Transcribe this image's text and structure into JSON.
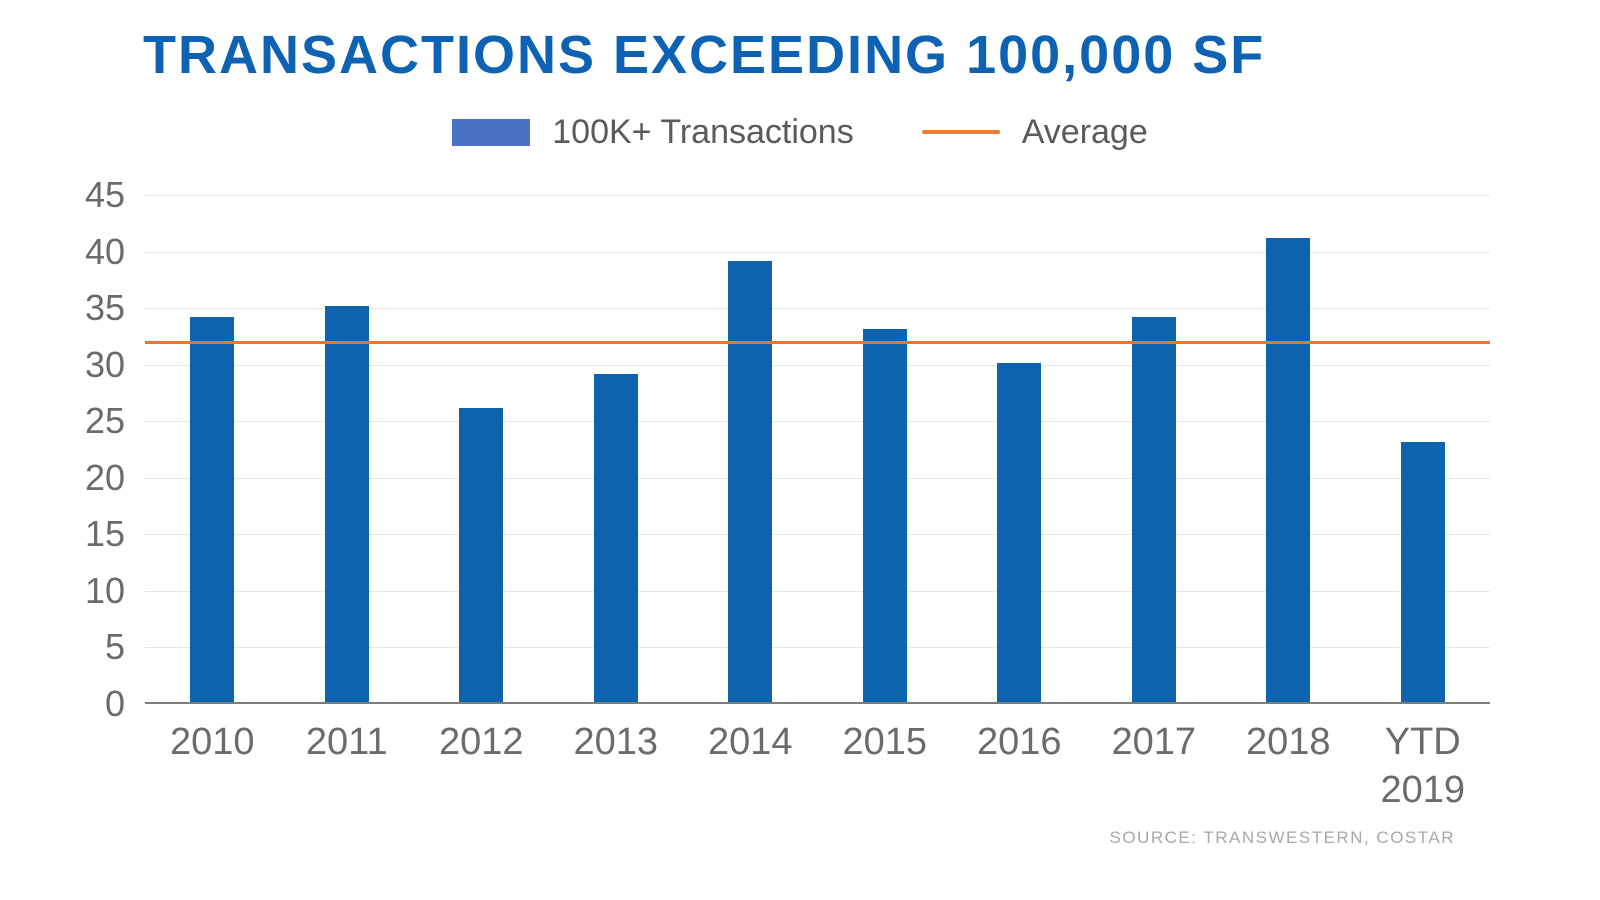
{
  "header": {
    "title": "TRANSACTIONS EXCEEDING 100,000 SF"
  },
  "legend": {
    "bars_label": "100K+ Transactions",
    "average_label": "Average"
  },
  "footer": {
    "source": "SOURCE: TRANSWESTERN, COSTAR"
  },
  "colors": {
    "title": "#0d62b4",
    "bar": "#0d63ad",
    "legend_bar_swatch": "#4a72c4",
    "average_line": "#e8772f",
    "legend_line_swatch": "#ed7d31",
    "axis_text": "#6b6b6b",
    "legend_text": "#5a5a5a",
    "gridline": "#e7e7e7",
    "baseline": "#7d7d7d",
    "source_text": "#a8a8a8"
  },
  "chart_data": {
    "type": "bar",
    "title": "TRANSACTIONS EXCEEDING 100,000 SF",
    "categories": [
      "2010",
      "2011",
      "2012",
      "2013",
      "2014",
      "2015",
      "2016",
      "2017",
      "2018",
      "YTD 2019"
    ],
    "xtick_lines": [
      [
        "2010"
      ],
      [
        "2011"
      ],
      [
        "2012"
      ],
      [
        "2013"
      ],
      [
        "2014"
      ],
      [
        "2015"
      ],
      [
        "2016"
      ],
      [
        "2017"
      ],
      [
        "2018"
      ],
      [
        "YTD",
        "2019"
      ]
    ],
    "series": [
      {
        "name": "100K+ Transactions",
        "type": "bar",
        "values": [
          34,
          35,
          26,
          29,
          39,
          33,
          30,
          34,
          41,
          23
        ]
      },
      {
        "name": "Average",
        "type": "line",
        "value": 32
      }
    ],
    "xlabel": "",
    "ylabel": "",
    "ylim": [
      0,
      45
    ],
    "yticks": [
      0,
      5,
      10,
      15,
      20,
      25,
      30,
      35,
      40,
      45
    ],
    "grid": true,
    "legend_position": "top",
    "source": "SOURCE: TRANSWESTERN, COSTAR"
  }
}
